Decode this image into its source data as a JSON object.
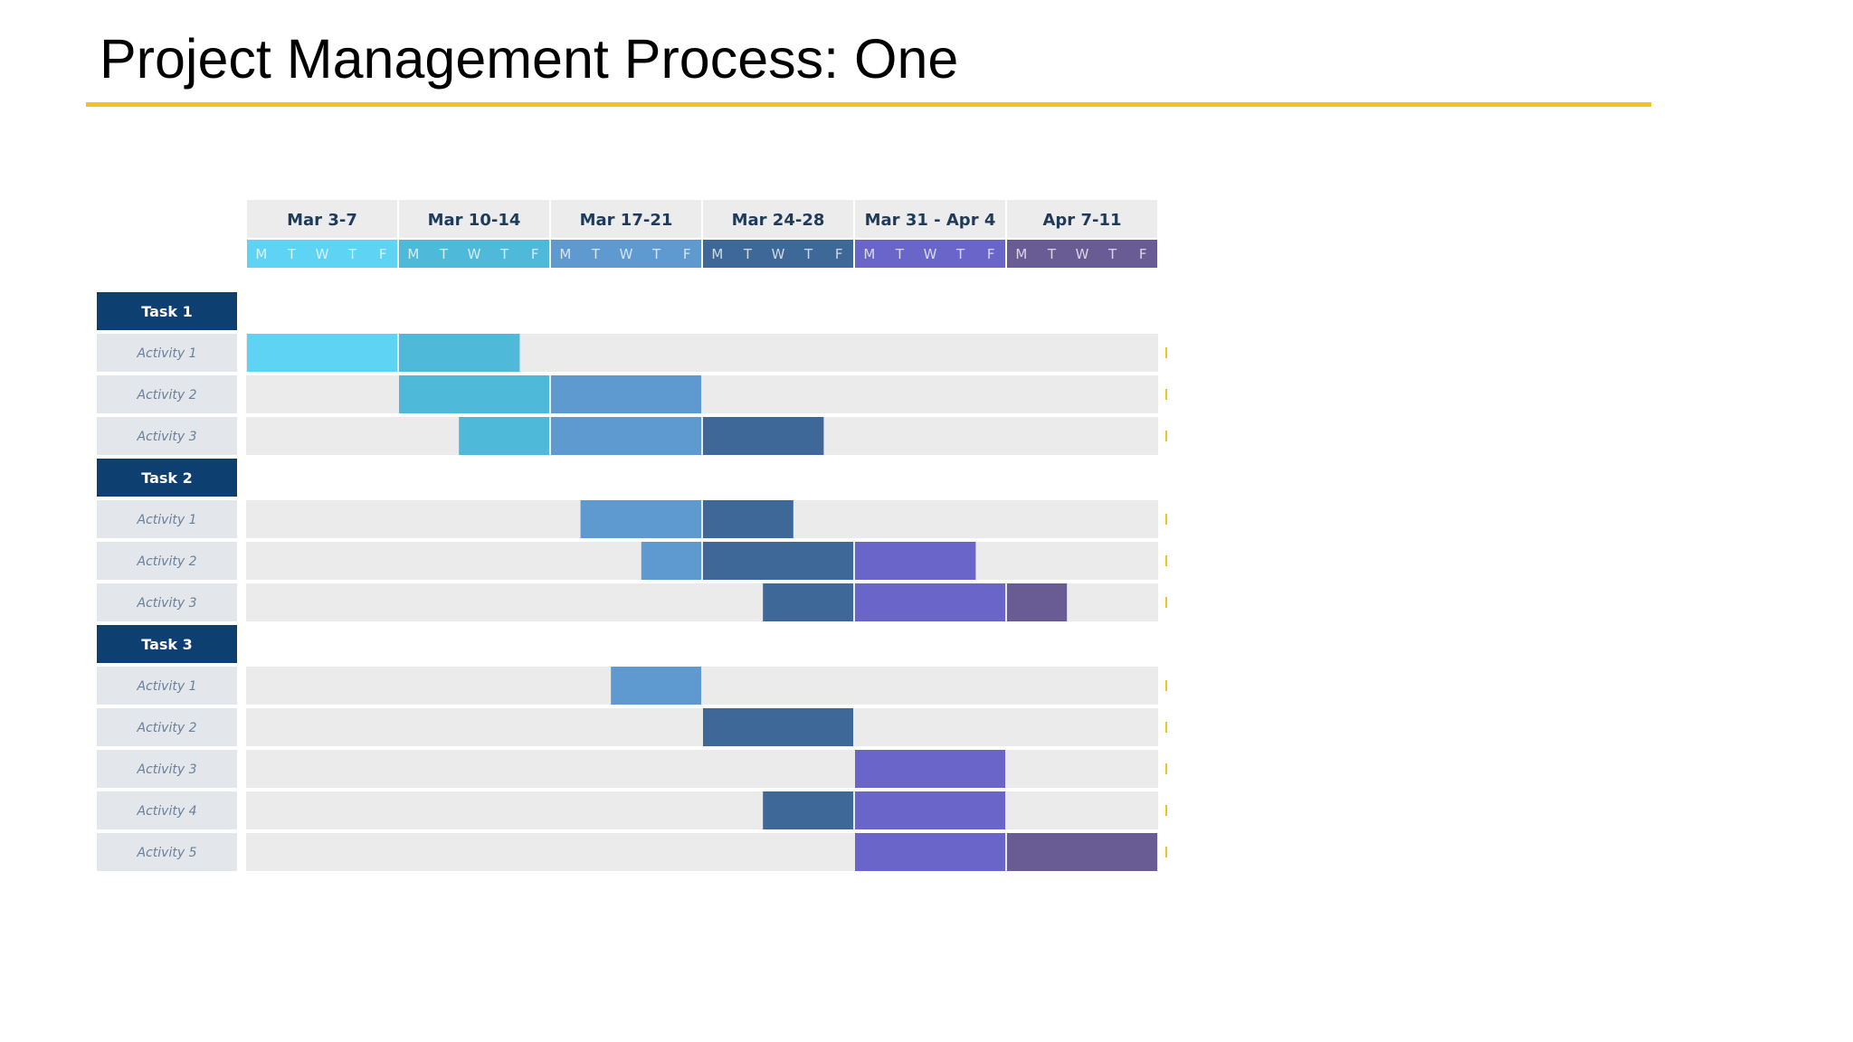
{
  "slide": {
    "title": "Project Management Process: One",
    "accent_color": "#f5c121"
  },
  "chart_data": {
    "type": "gantt",
    "title": "",
    "weeks": [
      {
        "label": "Mar 3-7",
        "color": "#5fd3f3"
      },
      {
        "label": "Mar 10-14",
        "color": "#4fb9d9"
      },
      {
        "label": "Mar 17-21",
        "color": "#5e99cf"
      },
      {
        "label": "Mar 24-28",
        "color": "#3d6898"
      },
      {
        "label": "Mar 31 - Apr 4",
        "color": "#6a65c8"
      },
      {
        "label": "Apr 7-11",
        "color": "#695b94"
      }
    ],
    "days": [
      "M",
      "T",
      "W",
      "T",
      "F"
    ],
    "task_color": "#0d3f70",
    "groups": [
      {
        "task": "Task 1",
        "activities": [
          {
            "label": "Activity 1",
            "start_day": 0,
            "end_day": 9
          },
          {
            "label": "Activity 2",
            "start_day": 5,
            "end_day": 15
          },
          {
            "label": "Activity 3",
            "start_day": 7,
            "end_day": 19
          }
        ]
      },
      {
        "task": "Task 2",
        "activities": [
          {
            "label": "Activity 1",
            "start_day": 11,
            "end_day": 18
          },
          {
            "label": "Activity 2",
            "start_day": 13,
            "end_day": 24
          },
          {
            "label": "Activity 3",
            "start_day": 17,
            "end_day": 27
          }
        ]
      },
      {
        "task": "Task 3",
        "activities": [
          {
            "label": "Activity 1",
            "start_day": 12,
            "end_day": 15
          },
          {
            "label": "Activity 2",
            "start_day": 15,
            "end_day": 20
          },
          {
            "label": "Activity 3",
            "start_day": 20,
            "end_day": 25
          },
          {
            "label": "Activity 4",
            "start_day": 17,
            "end_day": 25
          },
          {
            "label": "Activity 5",
            "start_day": 20,
            "end_day": 30
          }
        ]
      }
    ]
  }
}
